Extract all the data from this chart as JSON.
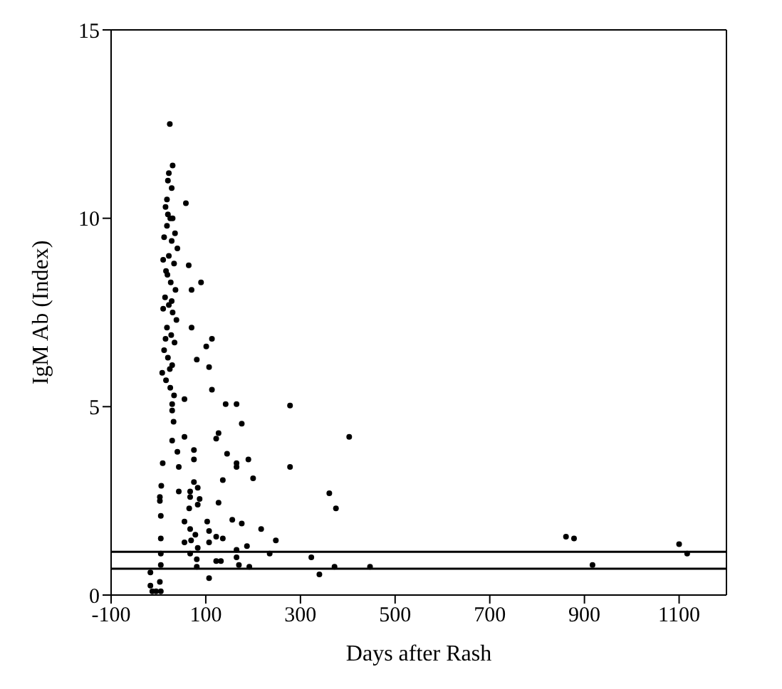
{
  "chart_data": {
    "type": "scatter",
    "xlabel": "Days after Rash",
    "ylabel": "IgM Ab (Index)",
    "xlim": [
      -100,
      1200
    ],
    "xticks": [
      -100,
      100,
      300,
      500,
      700,
      900,
      1100
    ],
    "ylim": [
      0,
      15
    ],
    "yticks": [
      0,
      5,
      10,
      15
    ],
    "legend": false,
    "marker": "circle",
    "ref_lines": [
      {
        "axis": "y",
        "value": 1.15,
        "label": null
      },
      {
        "axis": "y",
        "value": 0.7,
        "label": null
      }
    ],
    "series": [
      {
        "color": "#000000",
        "x": [
          24,
          30,
          22,
          20,
          28,
          18,
          15,
          20,
          25,
          30,
          18,
          35,
          28,
          40,
          22,
          33,
          12,
          16,
          26,
          36,
          14,
          22,
          30,
          38,
          10,
          18,
          27,
          34,
          12,
          20,
          29,
          8,
          16,
          25,
          33,
          10,
          19,
          28,
          15,
          24,
          58,
          64,
          90,
          70,
          70,
          113,
          101,
          81,
          107,
          113,
          142,
          165,
          278,
          176,
          278,
          361,
          375,
          403,
          29,
          55,
          29,
          32,
          29,
          55,
          122,
          127,
          40,
          75,
          75,
          145,
          165,
          165,
          190,
          200,
          9,
          6,
          3,
          3,
          5,
          5,
          5,
          5,
          3,
          -17,
          -13,
          -5,
          5,
          -17,
          43,
          43,
          67,
          75,
          83,
          87,
          83,
          67,
          65,
          136,
          127,
          55,
          103,
          156,
          176,
          217,
          248,
          67,
          78,
          107,
          122,
          136,
          55,
          69,
          83,
          107,
          165,
          187,
          165,
          67,
          81,
          81,
          132,
          122,
          170,
          192,
          235,
          323,
          340,
          107,
          372,
          447,
          861,
          878,
          1100,
          1117,
          917
        ],
        "values": [
          12.5,
          11.4,
          11.2,
          11,
          10.8,
          10.5,
          10.3,
          10.1,
          10,
          10,
          9.8,
          9.6,
          9.4,
          9.2,
          9,
          8.8,
          9.5,
          8.6,
          8.3,
          8.1,
          7.9,
          7.7,
          7.5,
          7.3,
          7.6,
          7.1,
          6.9,
          6.7,
          6.5,
          6.3,
          6.1,
          5.9,
          5.7,
          5.5,
          5.3,
          8.9,
          8.5,
          7.8,
          6.8,
          6,
          10.4,
          8.75,
          8.3,
          8.1,
          7.1,
          6.8,
          6.6,
          6.25,
          6.05,
          5.45,
          5.07,
          5.07,
          5.03,
          4.55,
          3.4,
          2.7,
          2.3,
          4.2,
          5.07,
          5.2,
          4.9,
          4.6,
          4.1,
          4.2,
          4.15,
          4.3,
          3.8,
          3.85,
          3.6,
          3.75,
          3.5,
          3.4,
          3.6,
          3.1,
          3.5,
          2.9,
          2.6,
          2.5,
          2.1,
          1.5,
          1.1,
          0.8,
          0.35,
          0.25,
          0.1,
          0.1,
          0.1,
          0.6,
          3.4,
          2.75,
          2.75,
          3,
          2.85,
          2.55,
          2.4,
          2.6,
          2.3,
          3.05,
          2.45,
          1.95,
          1.95,
          2,
          1.9,
          1.75,
          1.45,
          1.75,
          1.6,
          1.7,
          1.55,
          1.5,
          1.4,
          1.45,
          1.25,
          1.4,
          1.2,
          1.3,
          1,
          1.1,
          0.95,
          0.75,
          0.9,
          0.9,
          0.8,
          0.75,
          1.1,
          1,
          0.55,
          0.45,
          0.75,
          0.75,
          1.55,
          1.5,
          1.35,
          1.1,
          0.8
        ]
      }
    ]
  }
}
